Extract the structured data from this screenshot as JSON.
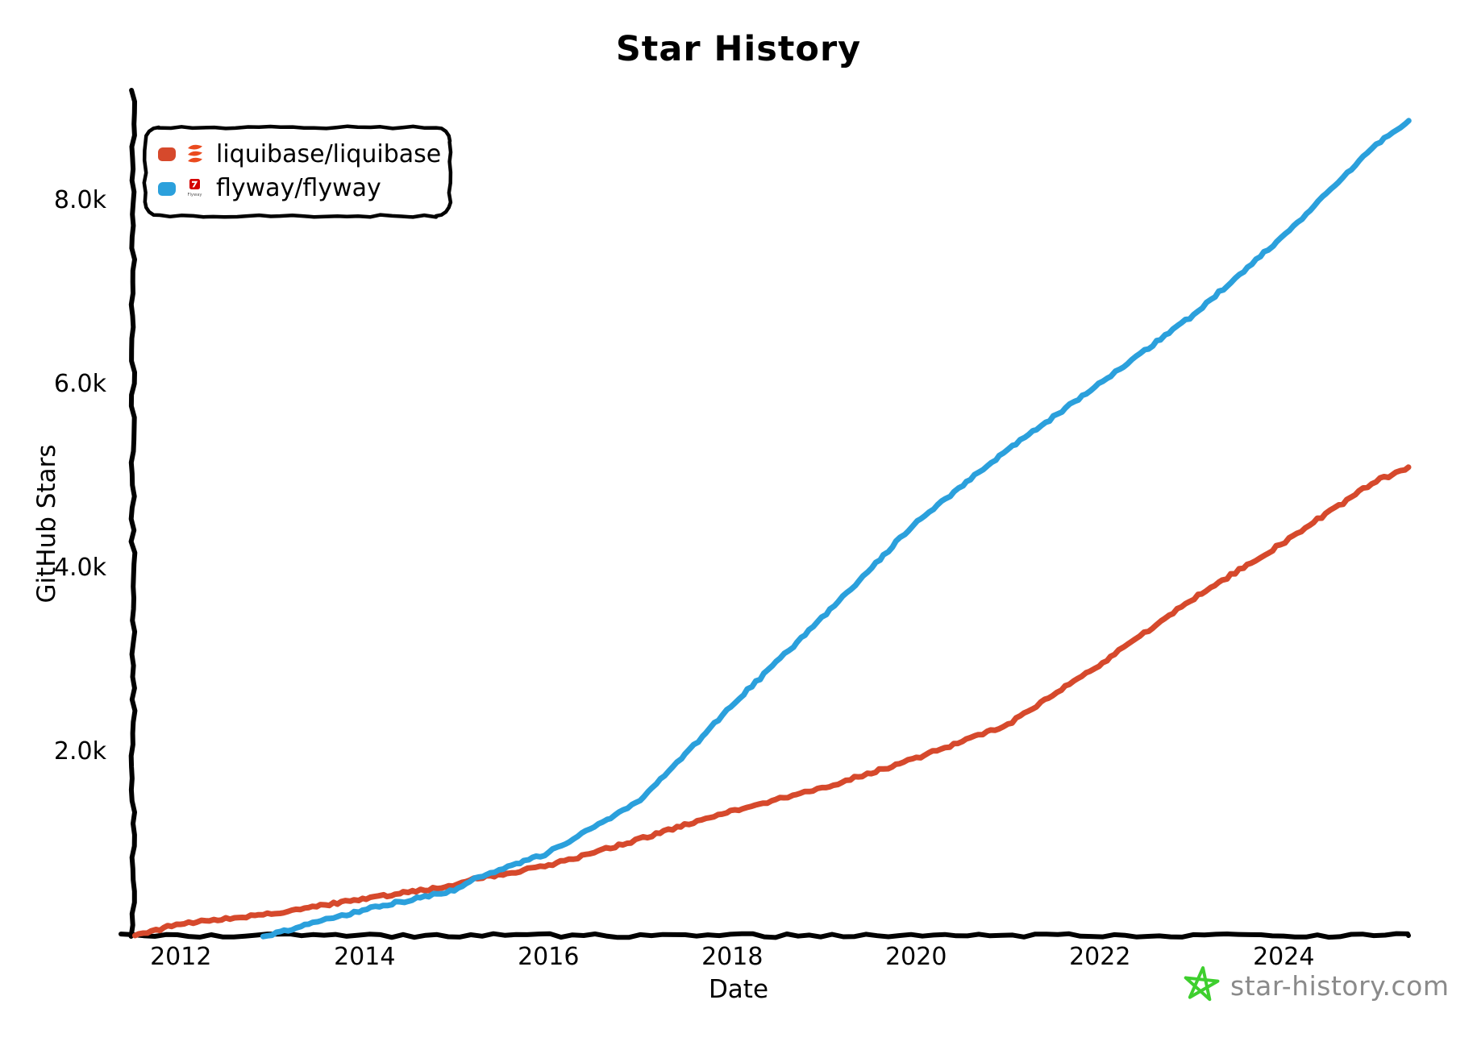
{
  "title": "Star History",
  "axes": {
    "x_label": "Date",
    "y_label": "GitHub Stars",
    "x_ticks": [
      "2012",
      "2014",
      "2016",
      "2018",
      "2020",
      "2022",
      "2024"
    ],
    "y_ticks": [
      "2.0k",
      "4.0k",
      "6.0k",
      "8.0k"
    ]
  },
  "legend": {
    "items": [
      {
        "label": "liquibase/liquibase",
        "color": "#d6492c",
        "icon": "liquibase-logo",
        "logo_color": "#ea4a1e"
      },
      {
        "label": "flyway/flyway",
        "color": "#2ba0dc",
        "icon": "flyway-logo",
        "logo_color": "#d40000",
        "logo_text": "Flyway"
      }
    ]
  },
  "watermark": {
    "text": "star-history.com",
    "text_color": "#8a8a8a",
    "star_color": "#3ecf2e"
  },
  "chart_data": {
    "type": "line",
    "title": "Star History",
    "xlabel": "Date",
    "ylabel": "GitHub Stars",
    "x_range": [
      2011.48,
      2025.37
    ],
    "ylim": [
      0,
      9200
    ],
    "x_tick_years": [
      2012,
      2014,
      2016,
      2018,
      2020,
      2022,
      2024
    ],
    "y_tick_values": [
      2000,
      4000,
      6000,
      8000
    ],
    "grid": false,
    "legend_position": "top-left",
    "style": "hand-drawn (xkcd)",
    "series": [
      {
        "name": "liquibase/liquibase",
        "color": "#d6492c",
        "points": [
          [
            2011.5,
            0
          ],
          [
            2012,
            130
          ],
          [
            2013,
            240
          ],
          [
            2014,
            400
          ],
          [
            2015,
            550
          ],
          [
            2015.2,
            615
          ],
          [
            2016,
            760
          ],
          [
            2017,
            1050
          ],
          [
            2018,
            1360
          ],
          [
            2019,
            1610
          ],
          [
            2020,
            1930
          ],
          [
            2021,
            2300
          ],
          [
            2022,
            2950
          ],
          [
            2023,
            3660
          ],
          [
            2024,
            4280
          ],
          [
            2025,
            4950
          ],
          [
            2025.37,
            5090
          ]
        ]
      },
      {
        "name": "flyway/flyway",
        "color": "#2ba0dc",
        "points": [
          [
            2012.9,
            0
          ],
          [
            2013,
            20
          ],
          [
            2014,
            280
          ],
          [
            2015,
            500
          ],
          [
            2015.2,
            615
          ],
          [
            2016,
            900
          ],
          [
            2017,
            1470
          ],
          [
            2018,
            2510
          ],
          [
            2019,
            3480
          ],
          [
            2020,
            4500
          ],
          [
            2021,
            5290
          ],
          [
            2022,
            6010
          ],
          [
            2023,
            6740
          ],
          [
            2024,
            7620
          ],
          [
            2025,
            8600
          ],
          [
            2025.37,
            8880
          ]
        ]
      }
    ]
  }
}
